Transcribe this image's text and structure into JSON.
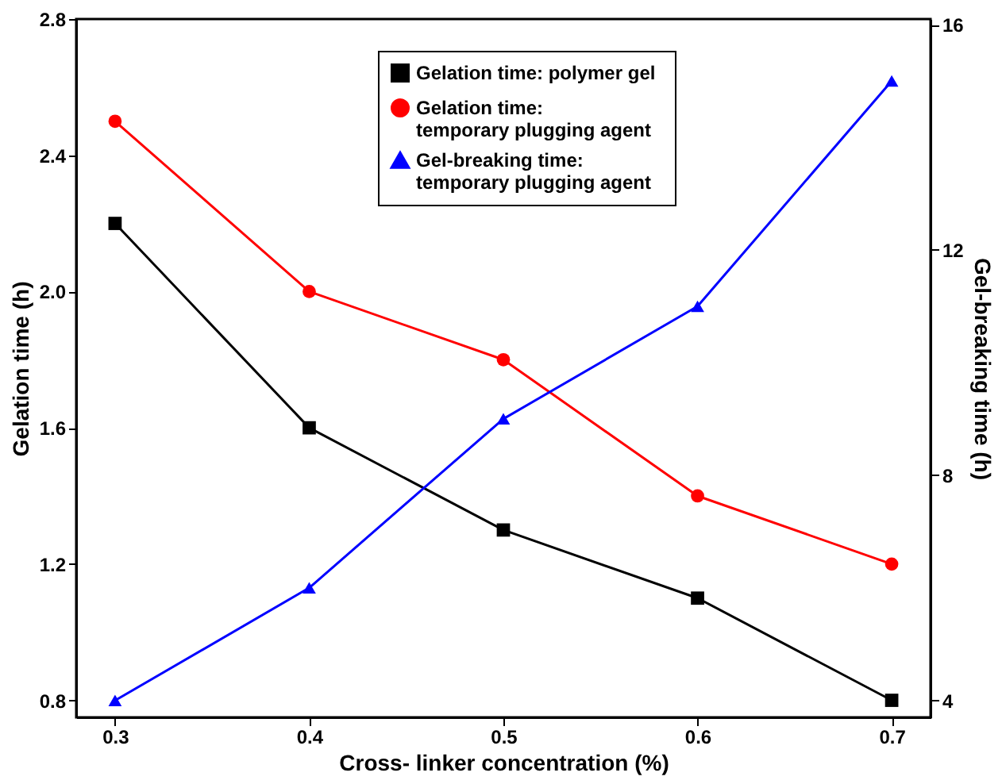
{
  "chart_data": {
    "type": "line",
    "xlabel": "Cross- linker concentration (%)",
    "ylabel": "Gelation time (h)",
    "y2label": "Gel-breaking time (h)",
    "x": [
      0.3,
      0.4,
      0.5,
      0.6,
      0.7
    ],
    "series": [
      {
        "name": "Gelation time:  polymer gel",
        "color": "#000000",
        "marker": "square",
        "values": [
          2.2,
          1.6,
          1.3,
          1.1,
          0.8
        ]
      },
      {
        "name": "Gelation time:\ntemporary plugging agent",
        "color": "#ff0000",
        "marker": "circle",
        "values": [
          2.5,
          2.0,
          1.8,
          1.4,
          1.2
        ]
      },
      {
        "name": "Gel-breaking time:\ntemporary plugging agent",
        "color": "#0000ff",
        "marker": "triangle",
        "axis": "y2",
        "values": [
          4,
          6,
          9,
          11,
          15
        ]
      }
    ],
    "xlim": [
      0.28,
      0.72
    ],
    "xticks": [
      {
        "value": 0.3,
        "label": "0.3"
      },
      {
        "value": 0.4,
        "label": "0.4"
      },
      {
        "value": 0.5,
        "label": "0.5"
      },
      {
        "value": 0.6,
        "label": "0.6"
      },
      {
        "value": 0.7,
        "label": "0.7"
      }
    ],
    "ylim": [
      0.75,
      2.8
    ],
    "yticks": [
      0.8,
      1.2,
      1.6,
      {
        "value": 2.0,
        "label": "2.0"
      },
      2.4,
      2.8
    ],
    "y2lim": [
      3.7,
      16.1
    ],
    "y2ticks": [
      4,
      8,
      12,
      16
    ],
    "grid": false,
    "legend": "top"
  }
}
